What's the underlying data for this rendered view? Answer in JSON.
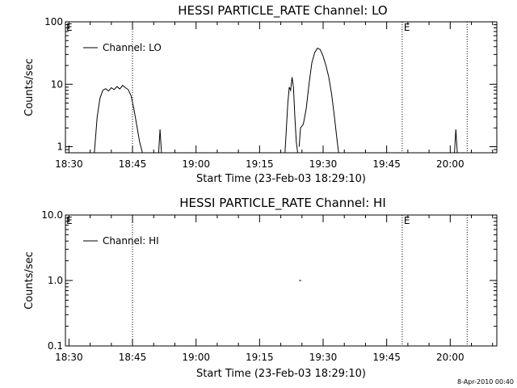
{
  "footer_timestamp": "8-Apr-2010 00:40",
  "colors": {
    "foreground": "#000000",
    "background": "#ffffff"
  },
  "chart_data": [
    {
      "type": "line",
      "title": "HESSI PARTICLE_RATE Channel: LO",
      "xlabel": "Start Time (23-Feb-03 18:29:10)",
      "ylabel": "Counts/sec",
      "yscale": "log",
      "xlim": [
        "18:29:10",
        "20:11:00"
      ],
      "ylim": [
        0.8,
        100
      ],
      "ytick_labels": [
        "1",
        "10",
        "100"
      ],
      "ytick_values": [
        1,
        10,
        100
      ],
      "xtick_labels": [
        "18:30",
        "18:45",
        "19:00",
        "19:15",
        "19:30",
        "19:45",
        "20:00"
      ],
      "legend": {
        "position": "top-left",
        "entries": [
          "Channel: LO"
        ]
      },
      "markers": [
        {
          "label": "",
          "time": "18:45:00"
        },
        {
          "label": "E",
          "time": "19:48:40"
        },
        {
          "label": "",
          "time": "20:04:00"
        }
      ],
      "corner_labels": [
        "E"
      ],
      "series": [
        {
          "name": "Channel: LO",
          "segments": [
            [
              [
                "18:36:00",
                0.8
              ],
              [
                "18:36:40",
                3
              ],
              [
                "18:37:20",
                6
              ],
              [
                "18:38:00",
                8
              ],
              [
                "18:38:40",
                8.5
              ],
              [
                "18:39:20",
                7.8
              ],
              [
                "18:40:00",
                8.8
              ],
              [
                "18:40:40",
                8.2
              ],
              [
                "18:41:20",
                9.2
              ],
              [
                "18:42:00",
                8.4
              ],
              [
                "18:42:40",
                9.6
              ],
              [
                "18:43:20",
                8.8
              ],
              [
                "18:44:00",
                8.2
              ],
              [
                "18:44:40",
                6.5
              ],
              [
                "18:45:20",
                4
              ],
              [
                "18:46:00",
                2.2
              ],
              [
                "18:46:40",
                1.2
              ],
              [
                "18:47:20",
                0.8
              ]
            ],
            [
              [
                "18:51:10",
                0.8
              ],
              [
                "18:51:30",
                1.9
              ],
              [
                "18:51:50",
                0.8
              ]
            ],
            [
              [
                "19:21:00",
                0.8
              ],
              [
                "19:21:40",
                5
              ],
              [
                "19:22:00",
                9
              ],
              [
                "19:22:20",
                8
              ],
              [
                "19:22:40",
                13
              ],
              [
                "19:23:00",
                9
              ],
              [
                "19:23:20",
                3
              ],
              [
                "19:23:40",
                1.2
              ],
              [
                "19:24:00",
                0.8
              ]
            ],
            [
              [
                "19:24:20",
                1
              ],
              [
                "19:24:40",
                2
              ],
              [
                "19:25:20",
                2.3
              ],
              [
                "19:26:00",
                4
              ],
              [
                "19:26:40",
                10
              ],
              [
                "19:27:20",
                22
              ],
              [
                "19:28:00",
                32
              ],
              [
                "19:28:40",
                38
              ],
              [
                "19:29:20",
                36
              ],
              [
                "19:30:00",
                28
              ],
              [
                "19:30:40",
                20
              ],
              [
                "19:31:20",
                13
              ],
              [
                "19:32:00",
                7
              ],
              [
                "19:32:40",
                3
              ],
              [
                "19:33:20",
                1.2
              ],
              [
                "19:33:40",
                0.8
              ]
            ],
            [
              [
                "20:01:00",
                0.8
              ],
              [
                "20:01:20",
                1.9
              ],
              [
                "20:01:40",
                0.8
              ]
            ]
          ]
        }
      ]
    },
    {
      "type": "line",
      "title": "HESSI PARTICLE_RATE Channel: HI",
      "xlabel": "Start Time (23-Feb-03 18:29:10)",
      "ylabel": "Counts/sec",
      "yscale": "log",
      "xlim": [
        "18:29:10",
        "20:11:00"
      ],
      "ylim": [
        0.1,
        10
      ],
      "ytick_labels": [
        "0.1",
        "1.0",
        "10.0"
      ],
      "ytick_values": [
        0.1,
        1,
        10
      ],
      "xtick_labels": [
        "18:30",
        "18:45",
        "19:00",
        "19:15",
        "19:30",
        "19:45",
        "20:00"
      ],
      "legend": {
        "position": "top-left",
        "entries": [
          "Channel: HI"
        ]
      },
      "markers": [
        {
          "label": "",
          "time": "18:45:00"
        },
        {
          "label": "E",
          "time": "19:48:40"
        },
        {
          "label": "",
          "time": "20:04:00"
        }
      ],
      "corner_labels": [
        "E"
      ],
      "series": [
        {
          "name": "Channel: HI",
          "segments": [
            [
              [
                "19:24:20",
                1
              ],
              [
                "19:24:50",
                1
              ]
            ]
          ]
        }
      ]
    }
  ]
}
